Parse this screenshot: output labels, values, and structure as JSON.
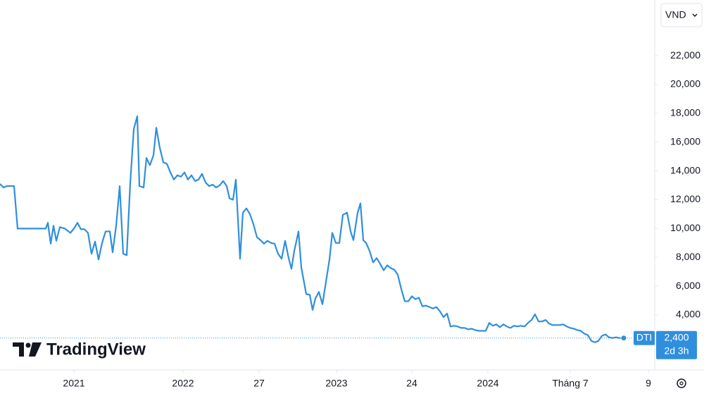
{
  "chart_data": {
    "type": "line",
    "currency": "VND",
    "brand": "TradingView",
    "x": [
      0,
      1,
      2,
      4,
      5,
      13,
      13.6,
      14.4,
      15.2,
      16,
      17,
      18.4,
      20,
      21,
      22,
      23,
      24,
      25,
      26,
      27,
      28,
      29,
      30,
      31.2,
      32,
      33,
      34,
      35,
      36,
      37,
      38,
      39,
      39.6,
      40.8,
      41.6,
      42.6,
      43.6,
      44.4,
      45.4,
      46.4,
      47.4,
      48.4,
      49.4,
      50.4,
      51.4,
      52.4,
      53.4,
      54.4,
      55.4,
      56.4,
      57.4,
      58.4,
      59.4,
      60.4,
      61.4,
      62.4,
      63.4,
      64.4,
      65.2,
      66.2,
      67,
      68.2,
      69,
      70,
      71,
      72,
      73,
      74,
      75,
      76,
      77,
      78,
      79,
      80,
      81,
      82,
      82.8,
      83.6,
      84.8,
      85.6,
      87,
      88,
      88.8,
      89.6,
      90.6,
      91.6,
      92.6,
      93.6,
      94.4,
      95.4,
      96.4,
      97.4,
      98.6,
      99.6,
      100.4,
      101.6,
      102.4,
      103.2,
      104,
      105,
      106,
      107,
      108,
      109,
      110,
      111,
      112,
      113,
      114,
      115,
      116,
      117,
      118,
      119,
      120,
      121,
      122,
      123,
      124,
      125,
      126,
      127,
      128,
      129,
      130,
      131,
      132,
      133,
      134,
      135,
      136,
      138,
      139,
      140,
      141,
      142,
      143,
      144,
      145,
      146,
      147,
      148,
      149,
      150,
      151,
      152,
      153,
      154,
      155,
      156,
      157,
      158,
      159,
      160,
      161,
      162,
      163,
      164,
      165,
      166,
      167,
      168,
      169,
      170,
      171,
      172,
      173,
      174,
      175,
      176,
      177.2
    ],
    "series": [
      {
        "name": "DTI",
        "color": "#2f8fdd",
        "values": [
          13100,
          12850,
          12950,
          12950,
          10000,
          10000,
          10400,
          8950,
          10200,
          9150,
          10100,
          10000,
          9700,
          10000,
          10400,
          9950,
          9950,
          9700,
          8250,
          9100,
          7850,
          9000,
          9800,
          9800,
          8350,
          10200,
          12950,
          8250,
          8150,
          13150,
          16900,
          17800,
          12950,
          12850,
          14900,
          14400,
          15100,
          17000,
          15600,
          14600,
          14500,
          13900,
          13400,
          13700,
          13600,
          13900,
          13400,
          13700,
          13300,
          13400,
          13800,
          13200,
          12950,
          13050,
          12850,
          13000,
          13300,
          12950,
          12100,
          12000,
          13400,
          7900,
          11100,
          11400,
          11000,
          10300,
          9400,
          9200,
          8950,
          9150,
          9000,
          8950,
          8250,
          7900,
          9150,
          7950,
          7200,
          8450,
          9800,
          7300,
          5450,
          5400,
          4350,
          5150,
          5600,
          4750,
          6300,
          7850,
          9700,
          9000,
          9000,
          10950,
          11100,
          9800,
          9200,
          11100,
          11750,
          9200,
          9000,
          8450,
          7650,
          7950,
          7550,
          7100,
          7450,
          7250,
          7150,
          6800,
          5800,
          4950,
          4950,
          5300,
          5100,
          5200,
          4600,
          4650,
          4550,
          4450,
          4550,
          4250,
          3850,
          4100,
          3200,
          3250,
          3200,
          3100,
          3100,
          3000,
          3050,
          2950,
          2900,
          2900,
          3450,
          3250,
          3350,
          3150,
          3350,
          3200,
          3100,
          3250,
          3200,
          3250,
          3200,
          3450,
          3650,
          4050,
          3550,
          3550,
          3650,
          3400,
          3300,
          3300,
          3300,
          3350,
          3200,
          3100,
          3050,
          2950,
          2900,
          2700,
          2600,
          2200,
          2100,
          2200,
          2550,
          2650,
          2450,
          2400,
          2450,
          2400,
          2400
        ]
      }
    ],
    "price_line": {
      "value": 2400,
      "label": "2,400",
      "countdown": "2d 3h"
    },
    "xlim": [
      0,
      186
    ],
    "xticks": [
      {
        "value": 21,
        "label": "2021"
      },
      {
        "value": 52,
        "label": "2022"
      },
      {
        "value": 73.6,
        "label": "27"
      },
      {
        "value": 95.6,
        "label": "2023"
      },
      {
        "value": 117,
        "label": "24"
      },
      {
        "value": 138.6,
        "label": "2024"
      },
      {
        "value": 162,
        "label": "Tháng 7"
      },
      {
        "value": 184.2,
        "label": "9"
      }
    ],
    "ylim": [
      184,
      25870
    ],
    "yticks": [
      {
        "value": 4000,
        "label": "4,000"
      },
      {
        "value": 6000,
        "label": "6,000"
      },
      {
        "value": 8000,
        "label": "8,000"
      },
      {
        "value": 10000,
        "label": "10,000"
      },
      {
        "value": 12000,
        "label": "12,000"
      },
      {
        "value": 14000,
        "label": "14,000"
      },
      {
        "value": 16000,
        "label": "16,000"
      },
      {
        "value": 18000,
        "label": "18,000"
      },
      {
        "value": 20000,
        "label": "20,000"
      },
      {
        "value": 22000,
        "label": "22,000"
      }
    ],
    "grid": false
  }
}
